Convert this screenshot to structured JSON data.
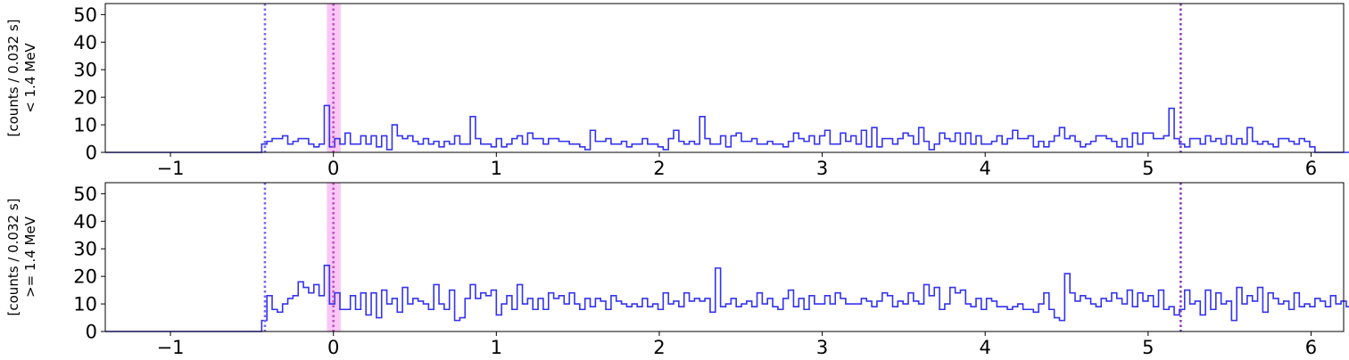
{
  "chart_data": [
    {
      "type": "line",
      "step": "post",
      "ylabel": [
        "[counts / 0.032 s]",
        "< 1.4 MeV"
      ],
      "xlim": [
        -1.4,
        6.2
      ],
      "ylim": [
        0,
        54
      ],
      "xticks": [
        -1,
        0,
        1,
        2,
        3,
        4,
        5,
        6
      ],
      "xtick_labels": [
        "−1",
        "0",
        "1",
        "2",
        "3",
        "4",
        "5",
        "6"
      ],
      "yticks": [
        0,
        10,
        20,
        30,
        40,
        50
      ],
      "ytick_labels": [
        "0",
        "10",
        "20",
        "30",
        "40",
        "50"
      ],
      "grid": false,
      "line_color": "#3333ee",
      "vlines": [
        {
          "x": -0.42,
          "color": "#7b68ee",
          "style": "dotted"
        },
        {
          "x": 0.0,
          "color": "#c050c0",
          "style": "dotted"
        },
        {
          "x": 5.2,
          "color": "#8a3fbf",
          "style": "dotted"
        }
      ],
      "span": {
        "x0": -0.04,
        "x1": 0.045,
        "color": "#f9c6f5"
      },
      "series": [
        {
          "x_start": -1.4,
          "bin_width": 0.032,
          "values": [
            0,
            0,
            0,
            0,
            0,
            0,
            0,
            0,
            0,
            0,
            0,
            0,
            0,
            0,
            0,
            0,
            0,
            0,
            0,
            0,
            0,
            0,
            0,
            0,
            0,
            0,
            0,
            0,
            0,
            0,
            3,
            4,
            5,
            5,
            6,
            3,
            4,
            5,
            5,
            3,
            2,
            3,
            17,
            2,
            5,
            3,
            7,
            3,
            3,
            6,
            3,
            6,
            2,
            6,
            1,
            10,
            6,
            5,
            6,
            4,
            3,
            5,
            3,
            4,
            2,
            4,
            3,
            6,
            3,
            3,
            13,
            5,
            3,
            3,
            2,
            5,
            2,
            3,
            5,
            6,
            3,
            7,
            5,
            5,
            3,
            5,
            5,
            4,
            4,
            3,
            3,
            2,
            1,
            8,
            4,
            4,
            5,
            3,
            3,
            4,
            2,
            3,
            3,
            5,
            3,
            3,
            2,
            1,
            5,
            8,
            4,
            3,
            4,
            3,
            13,
            5,
            3,
            3,
            6,
            2,
            6,
            7,
            4,
            4,
            5,
            3,
            3,
            4,
            3,
            3,
            2,
            4,
            7,
            5,
            4,
            6,
            3,
            6,
            8,
            3,
            3,
            7,
            4,
            6,
            3,
            8,
            2,
            9,
            2,
            5,
            5,
            3,
            5,
            7,
            6,
            3,
            9,
            4,
            1,
            3,
            7,
            5,
            4,
            7,
            3,
            7,
            3,
            6,
            3,
            3,
            4,
            6,
            3,
            5,
            8,
            5,
            5,
            6,
            2,
            4,
            2,
            4,
            6,
            9,
            5,
            6,
            4,
            2,
            3,
            4,
            6,
            6,
            5,
            4,
            2,
            5,
            2,
            7,
            3,
            7,
            7,
            5,
            5,
            6,
            16,
            5,
            3,
            2,
            5,
            5,
            3,
            6,
            4,
            5,
            3,
            6,
            3,
            5,
            3,
            9,
            4,
            3,
            4,
            3,
            2,
            5,
            5,
            4,
            3,
            5,
            4,
            2,
            0,
            0,
            0,
            0,
            0,
            0,
            0,
            0,
            0,
            0,
            0,
            0,
            0,
            0,
            0,
            0,
            0,
            0,
            0,
            0,
            0,
            0,
            0,
            0,
            0,
            0,
            0,
            0,
            0,
            0,
            0,
            0,
            0
          ]
        }
      ]
    },
    {
      "type": "line",
      "step": "post",
      "ylabel": [
        "[counts / 0.032 s]",
        ">= 1.4 MeV"
      ],
      "xlim": [
        -1.4,
        6.2
      ],
      "ylim": [
        0,
        54
      ],
      "xticks": [
        -1,
        0,
        1,
        2,
        3,
        4,
        5,
        6
      ],
      "xtick_labels": [
        "−1",
        "0",
        "1",
        "2",
        "3",
        "4",
        "5",
        "6"
      ],
      "yticks": [
        0,
        10,
        20,
        30,
        40,
        50
      ],
      "ytick_labels": [
        "0",
        "10",
        "20",
        "30",
        "40",
        "50"
      ],
      "grid": false,
      "line_color": "#3333ee",
      "vlines": [
        {
          "x": -0.42,
          "color": "#7b68ee",
          "style": "dotted"
        },
        {
          "x": 0.0,
          "color": "#c050c0",
          "style": "dotted"
        },
        {
          "x": 5.2,
          "color": "#8a3fbf",
          "style": "dotted"
        }
      ],
      "span": {
        "x0": -0.04,
        "x1": 0.045,
        "color": "#f9c6f5"
      },
      "series": [
        {
          "x_start": -1.4,
          "bin_width": 0.032,
          "values": [
            0,
            0,
            0,
            0,
            0,
            0,
            0,
            0,
            0,
            0,
            0,
            0,
            0,
            0,
            0,
            0,
            0,
            0,
            0,
            0,
            0,
            0,
            0,
            0,
            0,
            0,
            0,
            0,
            0,
            0,
            4,
            13,
            8,
            7,
            10,
            12,
            13,
            18,
            16,
            14,
            17,
            13,
            24,
            10,
            14,
            8,
            8,
            13,
            8,
            14,
            6,
            14,
            5,
            15,
            10,
            12,
            7,
            16,
            10,
            12,
            11,
            10,
            8,
            17,
            10,
            8,
            15,
            4,
            5,
            12,
            17,
            12,
            14,
            13,
            15,
            6,
            10,
            13,
            8,
            17,
            10,
            12,
            8,
            12,
            8,
            14,
            12,
            13,
            10,
            14,
            10,
            8,
            12,
            9,
            12,
            11,
            8,
            13,
            11,
            10,
            9,
            10,
            9,
            12,
            9,
            10,
            8,
            14,
            10,
            11,
            9,
            14,
            11,
            12,
            11,
            12,
            7,
            23,
            9,
            10,
            12,
            9,
            10,
            11,
            9,
            14,
            10,
            12,
            9,
            8,
            12,
            15,
            9,
            12,
            8,
            13,
            10,
            10,
            13,
            10,
            14,
            12,
            10,
            10,
            10,
            12,
            11,
            9,
            11,
            14,
            13,
            9,
            11,
            10,
            14,
            11,
            10,
            17,
            13,
            16,
            8,
            10,
            16,
            14,
            15,
            10,
            9,
            12,
            8,
            12,
            11,
            9,
            9,
            8,
            9,
            10,
            8,
            8,
            7,
            10,
            14,
            8,
            5,
            4,
            21,
            14,
            11,
            13,
            12,
            10,
            9,
            12,
            11,
            14,
            12,
            10,
            15,
            9,
            14,
            11,
            13,
            9,
            15,
            8,
            9,
            6,
            8,
            15,
            10,
            11,
            6,
            15,
            8,
            14,
            10,
            11,
            4,
            16,
            10,
            13,
            11,
            16,
            7,
            14,
            12,
            10,
            11,
            8,
            14,
            9,
            10,
            9,
            12,
            11,
            9,
            13,
            10,
            11,
            9,
            13,
            1,
            0,
            0,
            0,
            0,
            0,
            0,
            0,
            0,
            0,
            0,
            0,
            0,
            0,
            0,
            0,
            0,
            0,
            0,
            0,
            0,
            0,
            0,
            0,
            0,
            0,
            0,
            0,
            0,
            0,
            0,
            0
          ]
        }
      ]
    }
  ]
}
